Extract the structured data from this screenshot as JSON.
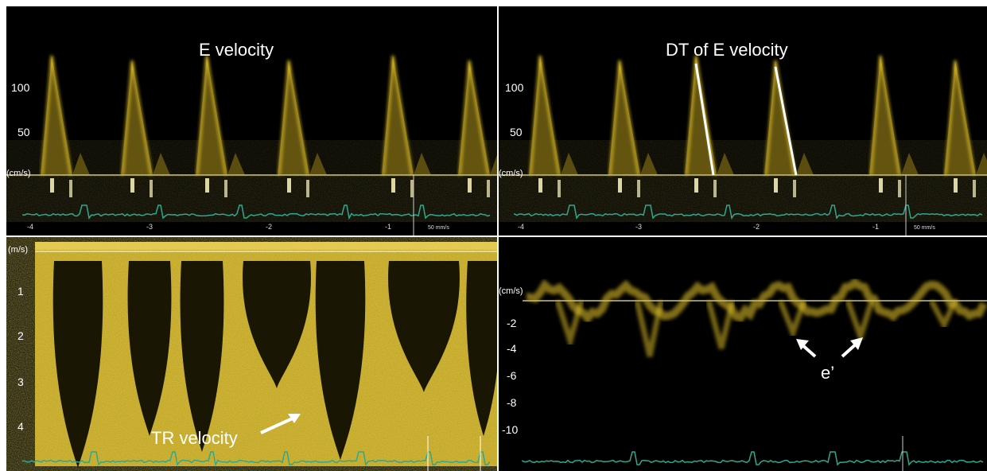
{
  "colors": {
    "doppler": "#e8c72a",
    "doppler_dim": "#6d5c12",
    "ecg": "#2fa890",
    "baseline": "#c9c07a",
    "annotation": "#ffffff"
  },
  "panel_tl": {
    "title": "E velocity",
    "unit": "(cm/s)",
    "yticks": [
      "100",
      "50"
    ],
    "xticks": [
      "-4",
      "-3",
      "-2",
      "-1"
    ],
    "speed": "50 mm/s"
  },
  "panel_tr": {
    "title": "DT of E velocity",
    "unit": "(cm/s)",
    "yticks": [
      "100",
      "50"
    ],
    "xticks": [
      "-4",
      "-3",
      "-2",
      "-1"
    ],
    "speed": "50 mm/s"
  },
  "panel_bl": {
    "label": "TR velocity",
    "unit": "(m/s)",
    "yticks": [
      "1",
      "2",
      "3",
      "4"
    ]
  },
  "panel_br": {
    "label": "e’",
    "unit": "(cm/s)",
    "yticks": [
      "-2",
      "-4",
      "-6",
      "-8",
      "-10"
    ]
  }
}
